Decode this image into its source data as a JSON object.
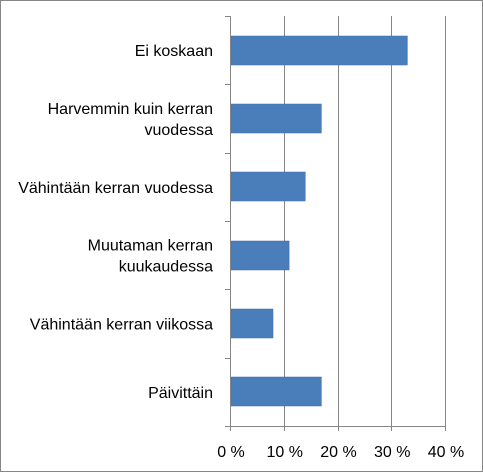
{
  "chart_data": {
    "type": "bar",
    "orientation": "horizontal",
    "categories": [
      [
        "Ei koskaan"
      ],
      [
        "Harvemmin kuin kerran",
        "vuodessa"
      ],
      [
        "Vähintään kerran vuodessa"
      ],
      [
        "Muutaman kerran",
        "kuukaudessa"
      ],
      [
        "Vähintään kerran viikossa"
      ],
      [
        "Päivittäin"
      ]
    ],
    "values": [
      33,
      17,
      14,
      11,
      8,
      17
    ],
    "unit": "%",
    "xlim": [
      0,
      40
    ],
    "xticks": [
      0,
      10,
      20,
      30,
      40
    ],
    "xtick_labels": [
      "0 %",
      "10 %",
      "20 %",
      "30 %",
      "40 %"
    ],
    "grid": "vertical",
    "legend": "none",
    "title": "",
    "xlabel": "",
    "ylabel": "",
    "colors": {
      "bar": "#4A7EBB",
      "bar_border": "#3A6BA5",
      "grid": "#868686",
      "axis": "#868686",
      "frame": "#868686"
    }
  }
}
